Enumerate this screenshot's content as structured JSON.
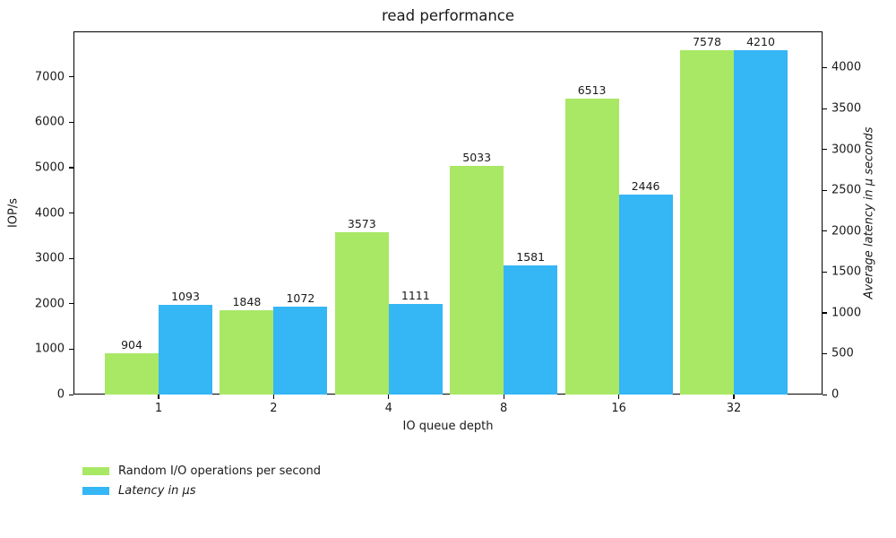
{
  "chart_data": {
    "type": "bar",
    "title": "read performance",
    "xlabel": "IO queue depth",
    "ylabel_left": "IOP/s",
    "ylabel_right": "Average latency in μ seconds",
    "categories": [
      "1",
      "2",
      "4",
      "8",
      "16",
      "32"
    ],
    "series": [
      {
        "name": "Random I/O operations per second",
        "axis": "left",
        "color": "#a8e865",
        "values": [
          904,
          1848,
          3573,
          5033,
          6513,
          7578
        ]
      },
      {
        "name": "Latency in μs",
        "axis": "right",
        "color": "#35b6f5",
        "values": [
          1093,
          1072,
          1111,
          1581,
          2446,
          4210
        ]
      }
    ],
    "left_axis": {
      "ticks": [
        0,
        1000,
        2000,
        3000,
        4000,
        5000,
        6000,
        7000
      ],
      "max": 8000
    },
    "right_axis": {
      "ticks": [
        0,
        500,
        1000,
        1500,
        2000,
        2500,
        3000,
        3500,
        4000
      ],
      "max": 4444
    },
    "legend_position": "bottom-left",
    "grid": false,
    "bar_labels_shown": true
  }
}
